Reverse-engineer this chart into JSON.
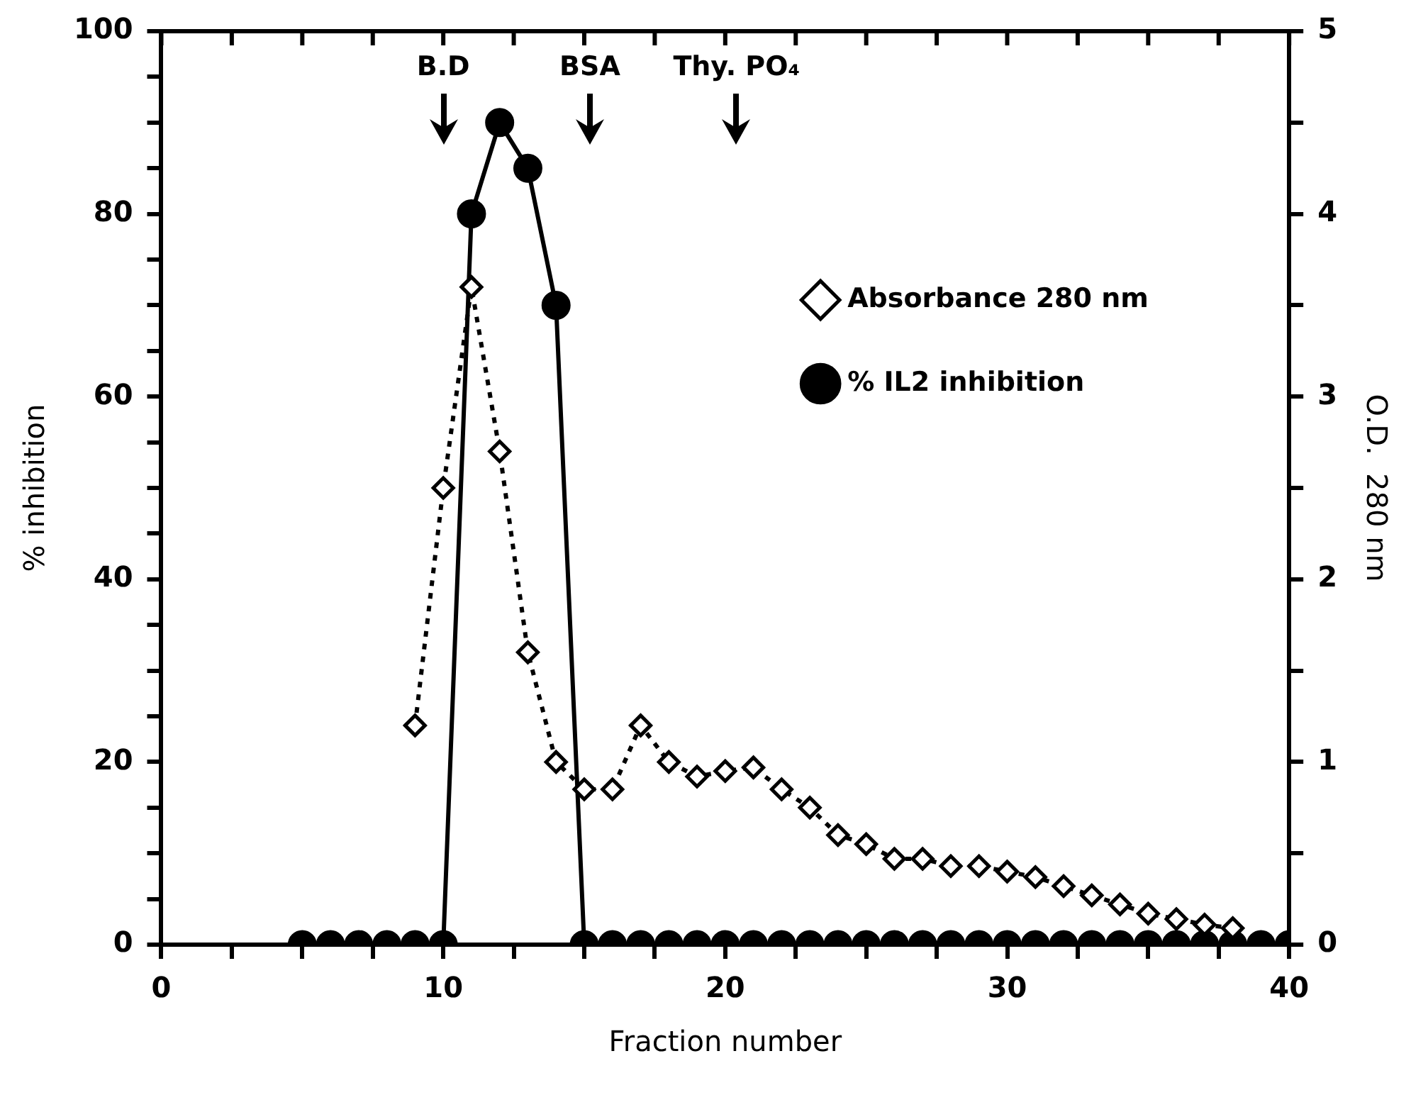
{
  "chart_data": {
    "type": "line",
    "xlabel": "Fraction number",
    "ylabel": "% inhibition",
    "y2label": "O.D.  280 nm",
    "xlim": [
      0,
      40
    ],
    "xticks": [
      0,
      {
        "value": 2.5,
        "label": null
      },
      {
        "value": 5,
        "label": null
      },
      {
        "value": 7.5,
        "label": null
      },
      10,
      {
        "value": 12.5,
        "label": null
      },
      {
        "value": 15,
        "label": null
      },
      {
        "value": 17.5,
        "label": null
      },
      20,
      {
        "value": 22.5,
        "label": null
      },
      {
        "value": 25,
        "label": null
      },
      {
        "value": 27.5,
        "label": null
      },
      30,
      {
        "value": 32.5,
        "label": null
      },
      {
        "value": 35,
        "label": null
      },
      {
        "value": 37.5,
        "label": null
      },
      40
    ],
    "ylim": [
      0,
      100
    ],
    "yticks": [
      0,
      {
        "value": 5,
        "label": null
      },
      {
        "value": 10,
        "label": null
      },
      {
        "value": 15,
        "label": null
      },
      20,
      {
        "value": 25,
        "label": null
      },
      {
        "value": 30,
        "label": null
      },
      {
        "value": 35,
        "label": null
      },
      40,
      {
        "value": 45,
        "label": null
      },
      {
        "value": 50,
        "label": null
      },
      {
        "value": 55,
        "label": null
      },
      60,
      {
        "value": 65,
        "label": null
      },
      {
        "value": 70,
        "label": null
      },
      {
        "value": 75,
        "label": null
      },
      80,
      {
        "value": 85,
        "label": null
      },
      {
        "value": 90,
        "label": null
      },
      {
        "value": 95,
        "label": null
      },
      100
    ],
    "y2lim": [
      0,
      5
    ],
    "y2ticks": [
      0,
      {
        "value": 0.5,
        "label": null
      },
      1,
      {
        "value": 1.5,
        "label": null
      },
      2,
      {
        "value": 2.5,
        "label": null
      },
      3,
      {
        "value": 3.5,
        "label": null
      },
      4,
      {
        "value": 4.5,
        "label": null
      },
      5
    ],
    "grid": false,
    "legend": "top right",
    "annotations": [
      "B.D",
      "BSA",
      "Thy. PO₄"
    ],
    "series": [
      {
        "name": "Absorbance 280 nm",
        "color": "#000000",
        "axis": "y2",
        "marker": "diamond",
        "line_style": "dotted",
        "x": [
          9,
          10,
          11,
          12,
          13,
          14,
          15,
          16,
          17,
          18,
          19,
          20,
          21,
          22,
          23,
          24,
          25,
          26,
          27,
          28,
          29,
          30,
          31,
          32,
          33,
          34,
          35,
          36,
          37,
          38
        ],
        "values": [
          1.2,
          2.5,
          3.6,
          2.7,
          1.6,
          1.0,
          0.85,
          0.85,
          1.2,
          1.0,
          0.92,
          0.95,
          0.97,
          0.85,
          0.75,
          0.6,
          0.55,
          0.47,
          0.47,
          0.43,
          0.43,
          0.4,
          0.37,
          0.32,
          0.27,
          0.22,
          0.17,
          0.14,
          0.11,
          0.09
        ]
      },
      {
        "name": "% IL2 inhibition",
        "color": "#000000",
        "marker": "circle",
        "line_style": "solid",
        "x": [
          5,
          6,
          7,
          8,
          9,
          10,
          11,
          12,
          13,
          14,
          15,
          16,
          17,
          18,
          19,
          20,
          21,
          22,
          23,
          24,
          25,
          26,
          27,
          28,
          29,
          30,
          31,
          32,
          33,
          34,
          35,
          36,
          37,
          38,
          39,
          40
        ],
        "values": [
          0,
          0,
          0,
          0,
          0,
          0,
          80,
          90,
          85,
          70,
          0,
          0,
          0,
          0,
          0,
          0,
          0,
          0,
          0,
          0,
          0,
          0,
          0,
          0,
          0,
          0,
          0,
          0,
          0,
          0,
          0,
          0,
          0,
          0,
          0,
          0
        ]
      }
    ]
  }
}
